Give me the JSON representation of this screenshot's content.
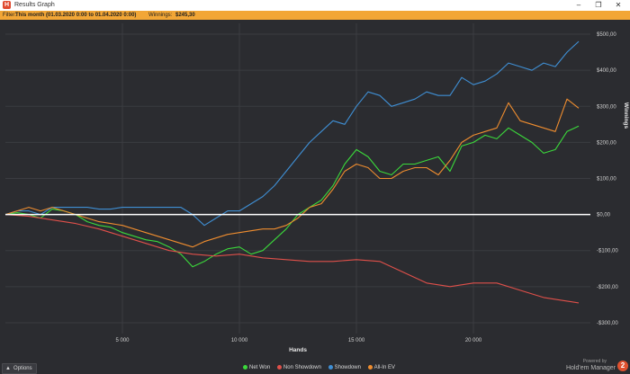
{
  "window": {
    "title": "Results Graph",
    "app_icon": "H",
    "minimize_icon": "–",
    "restore_icon": "❐",
    "close_icon": "✕"
  },
  "filter": {
    "label": "Filter:",
    "value": "This month (01.03.2020 0:00 to 01.04.2020 0:00)",
    "winnings_label": "Winnings:",
    "winnings_value": "$245,30"
  },
  "options": {
    "label": "Options",
    "caret_icon": "▲"
  },
  "brand": {
    "powered": "Powered by",
    "name": "Hold'em Manager",
    "badge": "2"
  },
  "colors": {
    "background": "#2b2c30",
    "grid": "#3b3c41",
    "zero_line": "#ffffff",
    "net_won": "#3bd93b",
    "non_showdown": "#e0504a",
    "showdown": "#3f8fd4",
    "allin_ev": "#ef8d2f"
  },
  "chart_data": {
    "type": "line",
    "xlabel": "Hands",
    "ylabel": "Winnings",
    "xlim": [
      0,
      25000
    ],
    "ylim": [
      -330,
      530
    ],
    "xticks": [
      5000,
      10000,
      15000,
      20000
    ],
    "xtick_labels": [
      "5 000",
      "10 000",
      "15 000",
      "20 000"
    ],
    "yticks": [
      -300,
      -200,
      -100,
      0,
      100,
      200,
      300,
      400,
      500
    ],
    "ytick_labels": [
      "-$300,00",
      "-$200,00",
      "-$100,00",
      "$0,00",
      "$100,00",
      "$200,00",
      "$300,00",
      "$400,00",
      "$500,00"
    ],
    "grid": true,
    "legend_position": "bottom",
    "series": [
      {
        "name": "Net Won",
        "color_key": "net_won",
        "x": [
          0,
          500,
          1000,
          1500,
          2000,
          2500,
          3000,
          3500,
          4000,
          4500,
          5000,
          5500,
          6000,
          6500,
          7000,
          7500,
          8000,
          8500,
          9000,
          9500,
          10000,
          10500,
          11000,
          11500,
          12000,
          12500,
          13000,
          13500,
          14000,
          14500,
          15000,
          15500,
          16000,
          16500,
          17000,
          17500,
          18000,
          18500,
          19000,
          19500,
          20000,
          20500,
          21000,
          21500,
          22000,
          22500,
          23000,
          23500,
          24000,
          24500
        ],
        "y": [
          0,
          5,
          0,
          -10,
          15,
          10,
          0,
          -20,
          -30,
          -35,
          -50,
          -60,
          -70,
          -75,
          -90,
          -110,
          -145,
          -130,
          -110,
          -95,
          -90,
          -110,
          -100,
          -70,
          -40,
          0,
          20,
          40,
          80,
          140,
          180,
          160,
          120,
          110,
          140,
          140,
          150,
          160,
          120,
          190,
          200,
          220,
          210,
          240,
          220,
          200,
          170,
          180,
          230,
          245
        ]
      },
      {
        "name": "Non Showdown",
        "color_key": "non_showdown",
        "x": [
          0,
          1000,
          2000,
          3000,
          4000,
          5000,
          6000,
          7000,
          8000,
          9000,
          10000,
          11000,
          12000,
          13000,
          14000,
          15000,
          16000,
          17000,
          18000,
          19000,
          20000,
          21000,
          22000,
          23000,
          24000,
          24500
        ],
        "y": [
          0,
          -5,
          -15,
          -25,
          -40,
          -60,
          -80,
          -100,
          -110,
          -115,
          -110,
          -120,
          -125,
          -130,
          -130,
          -125,
          -130,
          -160,
          -190,
          -200,
          -190,
          -190,
          -210,
          -230,
          -240,
          -245
        ]
      },
      {
        "name": "Showdown",
        "color_key": "showdown",
        "x": [
          0,
          500,
          1000,
          1500,
          2000,
          2500,
          3000,
          3500,
          4000,
          4500,
          5000,
          5500,
          6000,
          6500,
          7000,
          7500,
          8000,
          8500,
          9000,
          9500,
          10000,
          10500,
          11000,
          11500,
          12000,
          12500,
          13000,
          13500,
          14000,
          14500,
          15000,
          15500,
          16000,
          16500,
          17000,
          17500,
          18000,
          18500,
          19000,
          19500,
          20000,
          20500,
          21000,
          21500,
          22000,
          22500,
          23000,
          23500,
          24000,
          24500
        ],
        "y": [
          0,
          10,
          10,
          0,
          20,
          20,
          20,
          20,
          15,
          15,
          20,
          20,
          20,
          20,
          20,
          20,
          0,
          -30,
          -10,
          10,
          10,
          30,
          50,
          80,
          120,
          160,
          200,
          230,
          260,
          250,
          300,
          340,
          330,
          300,
          310,
          320,
          340,
          330,
          330,
          380,
          360,
          370,
          390,
          420,
          410,
          400,
          420,
          410,
          450,
          480
        ]
      },
      {
        "name": "All-In EV",
        "color_key": "allin_ev",
        "x": [
          0,
          500,
          1000,
          1500,
          2000,
          2500,
          3000,
          3500,
          4000,
          4500,
          5000,
          5500,
          6000,
          6500,
          7000,
          7500,
          8000,
          8500,
          9000,
          9500,
          10000,
          10500,
          11000,
          11500,
          12000,
          12500,
          13000,
          13500,
          14000,
          14500,
          15000,
          15500,
          16000,
          16500,
          17000,
          17500,
          18000,
          18500,
          19000,
          19500,
          20000,
          20500,
          21000,
          21500,
          22000,
          22500,
          23000,
          23500,
          24000,
          24500
        ],
        "y": [
          0,
          10,
          20,
          10,
          20,
          10,
          0,
          -10,
          -20,
          -25,
          -30,
          -40,
          -50,
          -60,
          -70,
          -80,
          -90,
          -75,
          -65,
          -55,
          -50,
          -45,
          -40,
          -40,
          -30,
          -10,
          20,
          30,
          70,
          120,
          140,
          130,
          100,
          100,
          120,
          130,
          130,
          110,
          150,
          200,
          220,
          230,
          240,
          310,
          260,
          250,
          240,
          230,
          320,
          295
        ]
      }
    ]
  }
}
